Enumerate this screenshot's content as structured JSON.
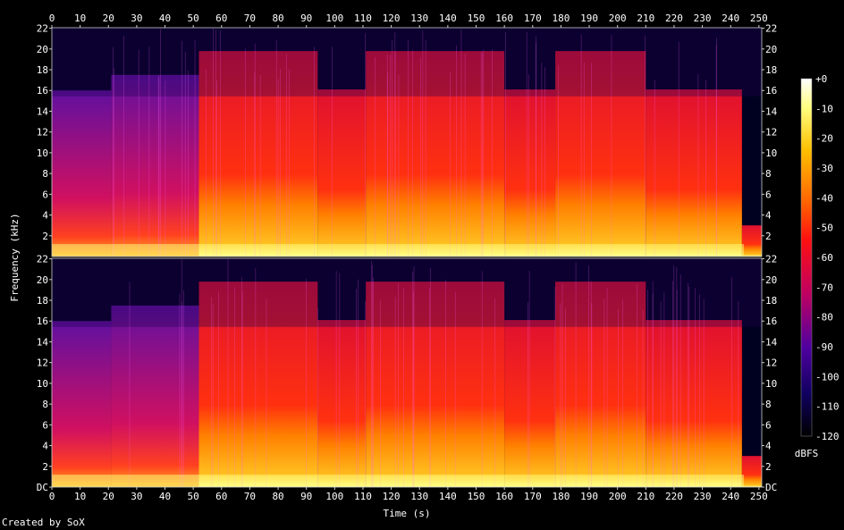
{
  "chart_data": {
    "type": "heatmap",
    "title": "",
    "xlabel": "Time (s)",
    "ylabel": "Frequency (kHz)",
    "xlim": [
      0,
      251
    ],
    "ylim": [
      0,
      22.05
    ],
    "x_ticks": [
      "0",
      "10",
      "20",
      "30",
      "40",
      "50",
      "60",
      "70",
      "80",
      "90",
      "100",
      "110",
      "120",
      "130",
      "140",
      "150",
      "160",
      "170",
      "180",
      "190",
      "200",
      "210",
      "220",
      "230",
      "240",
      "250"
    ],
    "y_ticks_top": [
      "2",
      "4",
      "6",
      "8",
      "10",
      "12",
      "14",
      "16",
      "18",
      "20",
      "22"
    ],
    "y_ticks_bottom": [
      "DC",
      "2",
      "4",
      "6",
      "8",
      "10",
      "12",
      "14",
      "16",
      "18",
      "20",
      "22"
    ],
    "colorbar": {
      "label": "dBFS",
      "ticks": [
        "+0",
        "-10",
        "-20",
        "-30",
        "-40",
        "-50",
        "-60",
        "-70",
        "-80",
        "-90",
        "-100",
        "-110",
        "-120"
      ],
      "range": [
        -120,
        0
      ]
    },
    "channels": 2,
    "segments": [
      {
        "start": 0,
        "end": 21,
        "cutoff_khz": 16.0
      },
      {
        "start": 21,
        "end": 52,
        "cutoff_khz": 17.5
      },
      {
        "start": 52,
        "end": 94,
        "cutoff_khz": 19.8
      },
      {
        "start": 94,
        "end": 111,
        "cutoff_khz": 16.1
      },
      {
        "start": 111,
        "end": 160,
        "cutoff_khz": 19.8
      },
      {
        "start": 160,
        "end": 178,
        "cutoff_khz": 16.1
      },
      {
        "start": 178,
        "end": 210,
        "cutoff_khz": 19.8
      },
      {
        "start": 210,
        "end": 244,
        "cutoff_khz": 16.1
      },
      {
        "start": 244,
        "end": 251,
        "cutoff_khz": 3.0
      }
    ],
    "colors": {
      "loud": "#ffffc0",
      "mid": "#ff2020",
      "quiet": "#5000a0",
      "floor": "#000020"
    }
  },
  "footer": {
    "created_by": "Created by SoX"
  }
}
